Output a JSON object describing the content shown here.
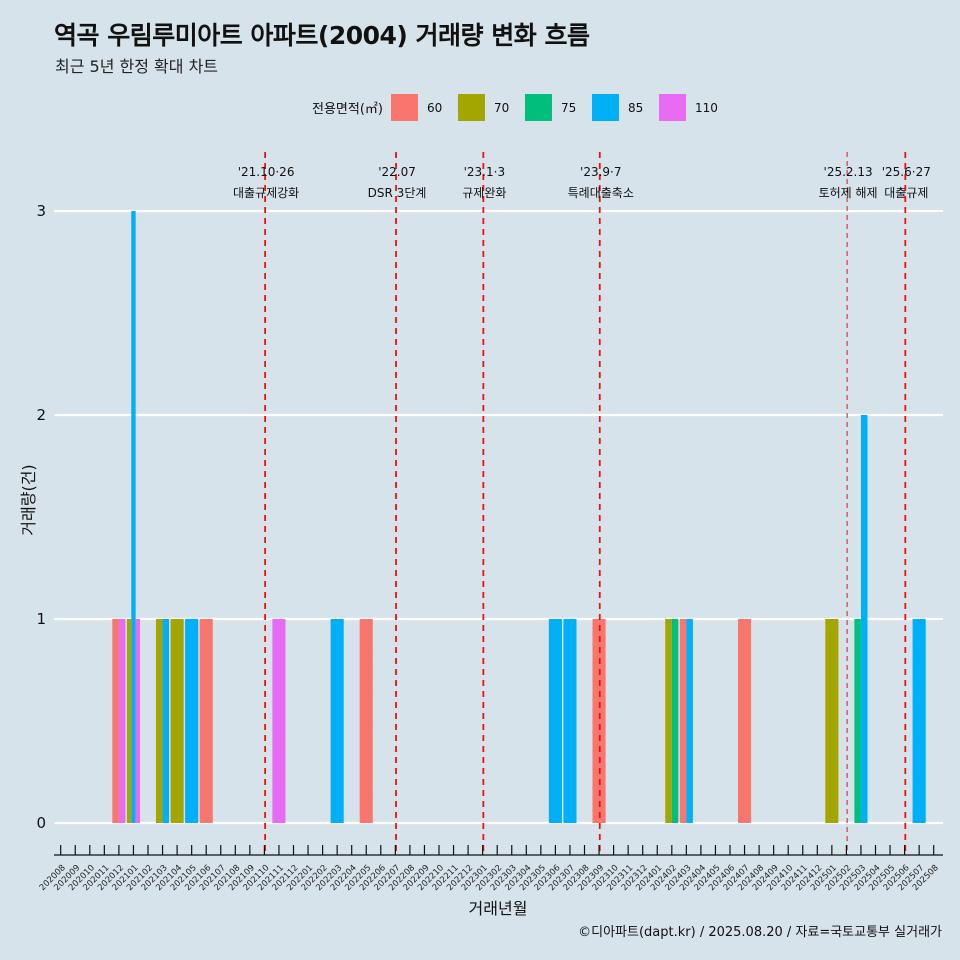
{
  "header": {
    "title": "역곡 우림루미아트 아파트(2004) 거래량 변화 흐름",
    "subtitle": "최근 5년 한정 확대 차트"
  },
  "legend": {
    "title": "전용면적(㎡)",
    "items": [
      {
        "label": "60",
        "color": "#f8766d"
      },
      {
        "label": "70",
        "color": "#a3a500"
      },
      {
        "label": "75",
        "color": "#00bf7d"
      },
      {
        "label": "85",
        "color": "#00b0f6"
      },
      {
        "label": "110",
        "color": "#e76bf3"
      }
    ]
  },
  "caption": "©디아파트(dapt.kr) / 2025.08.20 / 자료=국토교통부 실거래가",
  "chart_data": {
    "type": "bar",
    "title": "역곡 우림루미아트 아파트(2004) 거래량 변화 흐름",
    "subtitle": "최근 5년 한정 확대 차트",
    "xlabel": "거래년월",
    "ylabel": "거래량(건)",
    "ylim": [
      0,
      3
    ],
    "yticks": [
      "0",
      "1",
      "2",
      "3"
    ],
    "grid": "horizontal",
    "legend_position": "top",
    "categories": [
      "202008",
      "202009",
      "202010",
      "202011",
      "202012",
      "202101",
      "202102",
      "202103",
      "202104",
      "202105",
      "202106",
      "202107",
      "202108",
      "202109",
      "202110",
      "202111",
      "202112",
      "202201",
      "202202",
      "202203",
      "202204",
      "202205",
      "202206",
      "202207",
      "202208",
      "202209",
      "202210",
      "202211",
      "202212",
      "202301",
      "202302",
      "202303",
      "202304",
      "202305",
      "202306",
      "202307",
      "202308",
      "202309",
      "202310",
      "202311",
      "202312",
      "202401",
      "202402",
      "202403",
      "202404",
      "202405",
      "202406",
      "202407",
      "202408",
      "202409",
      "202410",
      "202411",
      "202412",
      "202501",
      "202502",
      "202503",
      "202504",
      "202505",
      "202506",
      "202507",
      "202508"
    ],
    "series_order": [
      "60",
      "70",
      "75",
      "85",
      "110"
    ],
    "bars": [
      {
        "month": "202012",
        "area": "60",
        "value": 1
      },
      {
        "month": "202012",
        "area": "110",
        "value": 1
      },
      {
        "month": "202101",
        "area": "70",
        "value": 1
      },
      {
        "month": "202101",
        "area": "85",
        "value": 3
      },
      {
        "month": "202101",
        "area": "110",
        "value": 1
      },
      {
        "month": "202103",
        "area": "70",
        "value": 1
      },
      {
        "month": "202103",
        "area": "85",
        "value": 1
      },
      {
        "month": "202104",
        "area": "70",
        "value": 1
      },
      {
        "month": "202105",
        "area": "85",
        "value": 1
      },
      {
        "month": "202106",
        "area": "60",
        "value": 1
      },
      {
        "month": "202111",
        "area": "110",
        "value": 1
      },
      {
        "month": "202203",
        "area": "85",
        "value": 1
      },
      {
        "month": "202205",
        "area": "60",
        "value": 1
      },
      {
        "month": "202306",
        "area": "85",
        "value": 1
      },
      {
        "month": "202307",
        "area": "85",
        "value": 1
      },
      {
        "month": "202309",
        "area": "60",
        "value": 1
      },
      {
        "month": "202402",
        "area": "70",
        "value": 1
      },
      {
        "month": "202402",
        "area": "75",
        "value": 1
      },
      {
        "month": "202403",
        "area": "60",
        "value": 1
      },
      {
        "month": "202403",
        "area": "85",
        "value": 1
      },
      {
        "month": "202407",
        "area": "60",
        "value": 1
      },
      {
        "month": "202501",
        "area": "70",
        "value": 1
      },
      {
        "month": "202503",
        "area": "75",
        "value": 1
      },
      {
        "month": "202503",
        "area": "85",
        "value": 2
      },
      {
        "month": "202507",
        "area": "85",
        "value": 1
      }
    ],
    "annotations": [
      {
        "month": "202110",
        "date": "'21.10·26",
        "text": "대출규제강화",
        "style": "bold"
      },
      {
        "month": "202207",
        "date": "'22.07",
        "text": "DSR 3단계",
        "style": "bold"
      },
      {
        "month": "202301",
        "date": "'23.1·3",
        "text": "규제완화",
        "style": "bold"
      },
      {
        "month": "202309",
        "date": "'23.9·7",
        "text": "특례대출축소",
        "style": "bold"
      },
      {
        "month": "202502",
        "date": "'25.2.13",
        "text": "토허제 해제",
        "style": "thin"
      },
      {
        "month": "202506",
        "date": "'25.6·27",
        "text": "대출규제",
        "style": "bold"
      }
    ]
  }
}
